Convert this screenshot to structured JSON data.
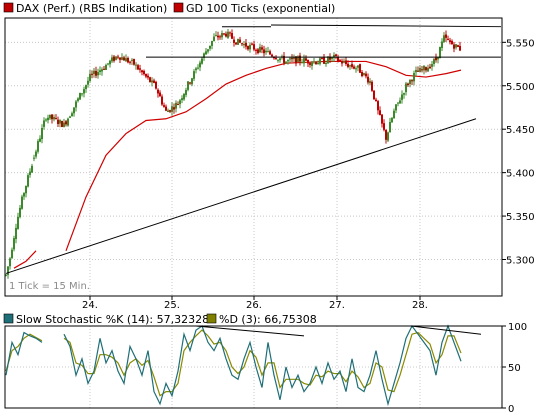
{
  "legend": {
    "series1": {
      "label": "DAX (Perf.) (RBS Indikation)",
      "color": "#c00000"
    },
    "series2": {
      "label": "GD 100 Ticks (exponential)",
      "color": "#c00000"
    },
    "series3": {
      "label": "Slow Stochastic %K (14): 57,32328",
      "color": "#1f6f78"
    },
    "series4": {
      "label": "%D (3): 66,75308",
      "color": "#808000"
    }
  },
  "note": "1 Tick = 15 Min.",
  "colors": {
    "up": "#3a8a2a",
    "down": "#c00000",
    "grid": "#c8c8c8",
    "frame": "#000000",
    "ma": "#d00000",
    "stochK": "#1f6f78",
    "stochD": "#8a8a00",
    "trend": "#000000"
  },
  "chart_data": [
    {
      "type": "candlestick",
      "title": "",
      "x_labels": [
        "24.",
        "25.",
        "26.",
        "27.",
        "28."
      ],
      "y_ticks": [
        "5.550",
        "5.500",
        "5.450",
        "5.400",
        "5.350",
        "5.300"
      ],
      "y_tick_values": [
        5550,
        5500,
        5450,
        5400,
        5350,
        5300
      ],
      "ylim": [
        5258,
        5578
      ],
      "anchors": [
        [
          0,
          5282
        ],
        [
          4,
          5302
        ],
        [
          10,
          5340
        ],
        [
          18,
          5378
        ],
        [
          26,
          5410
        ],
        [
          40,
          5465
        ],
        [
          50,
          5460
        ],
        [
          58,
          5455
        ],
        [
          70,
          5480
        ],
        [
          84,
          5510
        ],
        [
          96,
          5520
        ],
        [
          112,
          5535
        ],
        [
          128,
          5525
        ],
        [
          140,
          5510
        ],
        [
          150,
          5498
        ],
        [
          160,
          5470
        ],
        [
          172,
          5480
        ],
        [
          186,
          5510
        ],
        [
          200,
          5540
        ],
        [
          208,
          5555
        ],
        [
          220,
          5560
        ],
        [
          232,
          5550
        ],
        [
          244,
          5545
        ],
        [
          256,
          5540
        ],
        [
          268,
          5535
        ],
        [
          280,
          5528
        ],
        [
          292,
          5530
        ],
        [
          304,
          5528
        ],
        [
          316,
          5528
        ],
        [
          328,
          5532
        ],
        [
          340,
          5525
        ],
        [
          352,
          5520
        ],
        [
          364,
          5505
        ],
        [
          372,
          5470
        ],
        [
          380,
          5440
        ],
        [
          388,
          5470
        ],
        [
          400,
          5500
        ],
        [
          410,
          5515
        ],
        [
          420,
          5520
        ],
        [
          430,
          5530
        ],
        [
          438,
          5555
        ],
        [
          446,
          5548
        ],
        [
          455,
          5542
        ]
      ],
      "gaps_after": [
        26,
        58
      ],
      "ma_anchors": [
        [
          8,
          5290
        ],
        [
          20,
          5298
        ],
        [
          30,
          5310
        ],
        [
          60,
          5310
        ],
        [
          80,
          5372
        ],
        [
          100,
          5420
        ],
        [
          120,
          5445
        ],
        [
          140,
          5460
        ],
        [
          160,
          5462
        ],
        [
          180,
          5470
        ],
        [
          200,
          5485
        ],
        [
          220,
          5502
        ],
        [
          240,
          5512
        ],
        [
          260,
          5520
        ],
        [
          280,
          5526
        ],
        [
          300,
          5527
        ],
        [
          320,
          5528
        ],
        [
          340,
          5528
        ],
        [
          360,
          5528
        ],
        [
          380,
          5522
        ],
        [
          400,
          5512
        ],
        [
          420,
          5510
        ],
        [
          440,
          5514
        ],
        [
          455,
          5518
        ]
      ],
      "ma_gaps_after": [
        30
      ],
      "trendlines": [
        {
          "x1": 0,
          "y1": 5284,
          "x2": 470,
          "y2": 5462
        },
        {
          "x1": 140,
          "y1": 5533,
          "x2": 500,
          "y2": 5533
        },
        {
          "x1": 216,
          "y1": 5568,
          "x2": 265,
          "y2": 5568
        },
        {
          "x1": 265,
          "y1": 5570,
          "x2": 500,
          "y2": 5568
        }
      ]
    },
    {
      "type": "line",
      "title": "",
      "y_ticks": [
        "100",
        "50",
        "0"
      ],
      "y_tick_values": [
        100,
        50,
        0
      ],
      "ylim": [
        0,
        100
      ],
      "k_anchors": [
        [
          0,
          40
        ],
        [
          6,
          80
        ],
        [
          12,
          65
        ],
        [
          18,
          92
        ],
        [
          24,
          88
        ],
        [
          30,
          85
        ],
        [
          36,
          80
        ],
        [
          58,
          90
        ],
        [
          64,
          75
        ],
        [
          70,
          40
        ],
        [
          76,
          60
        ],
        [
          82,
          30
        ],
        [
          88,
          45
        ],
        [
          94,
          85
        ],
        [
          100,
          55
        ],
        [
          106,
          70
        ],
        [
          112,
          45
        ],
        [
          118,
          30
        ],
        [
          124,
          75
        ],
        [
          130,
          60
        ],
        [
          136,
          40
        ],
        [
          142,
          70
        ],
        [
          148,
          20
        ],
        [
          154,
          5
        ],
        [
          160,
          30
        ],
        [
          166,
          15
        ],
        [
          172,
          45
        ],
        [
          178,
          90
        ],
        [
          184,
          70
        ],
        [
          190,
          95
        ],
        [
          196,
          100
        ],
        [
          202,
          80
        ],
        [
          208,
          70
        ],
        [
          214,
          85
        ],
        [
          220,
          60
        ],
        [
          226,
          40
        ],
        [
          232,
          35
        ],
        [
          238,
          60
        ],
        [
          244,
          80
        ],
        [
          250,
          50
        ],
        [
          256,
          25
        ],
        [
          262,
          80
        ],
        [
          268,
          40
        ],
        [
          274,
          10
        ],
        [
          280,
          50
        ],
        [
          286,
          25
        ],
        [
          292,
          40
        ],
        [
          298,
          20
        ],
        [
          304,
          30
        ],
        [
          310,
          50
        ],
        [
          316,
          30
        ],
        [
          322,
          55
        ],
        [
          328,
          35
        ],
        [
          334,
          45
        ],
        [
          340,
          20
        ],
        [
          346,
          60
        ],
        [
          352,
          25
        ],
        [
          358,
          20
        ],
        [
          364,
          40
        ],
        [
          370,
          70
        ],
        [
          376,
          35
        ],
        [
          382,
          5
        ],
        [
          388,
          30
        ],
        [
          394,
          55
        ],
        [
          400,
          85
        ],
        [
          406,
          100
        ],
        [
          412,
          90
        ],
        [
          418,
          80
        ],
        [
          424,
          70
        ],
        [
          430,
          40
        ],
        [
          436,
          80
        ],
        [
          442,
          100
        ],
        [
          448,
          80
        ],
        [
          455,
          57
        ]
      ],
      "d_anchors": [
        [
          0,
          45
        ],
        [
          6,
          70
        ],
        [
          12,
          75
        ],
        [
          18,
          85
        ],
        [
          24,
          90
        ],
        [
          30,
          86
        ],
        [
          36,
          82
        ],
        [
          58,
          85
        ],
        [
          64,
          80
        ],
        [
          70,
          55
        ],
        [
          76,
          52
        ],
        [
          82,
          42
        ],
        [
          88,
          42
        ],
        [
          94,
          65
        ],
        [
          100,
          65
        ],
        [
          106,
          62
        ],
        [
          112,
          55
        ],
        [
          118,
          40
        ],
        [
          124,
          55
        ],
        [
          130,
          60
        ],
        [
          136,
          52
        ],
        [
          142,
          58
        ],
        [
          148,
          38
        ],
        [
          154,
          15
        ],
        [
          160,
          20
        ],
        [
          166,
          20
        ],
        [
          172,
          30
        ],
        [
          178,
          70
        ],
        [
          184,
          80
        ],
        [
          190,
          88
        ],
        [
          196,
          95
        ],
        [
          202,
          88
        ],
        [
          208,
          78
        ],
        [
          214,
          80
        ],
        [
          220,
          70
        ],
        [
          226,
          50
        ],
        [
          232,
          42
        ],
        [
          238,
          50
        ],
        [
          244,
          70
        ],
        [
          250,
          62
        ],
        [
          256,
          40
        ],
        [
          262,
          55
        ],
        [
          268,
          55
        ],
        [
          274,
          25
        ],
        [
          280,
          35
        ],
        [
          286,
          35
        ],
        [
          292,
          35
        ],
        [
          298,
          30
        ],
        [
          304,
          28
        ],
        [
          310,
          40
        ],
        [
          316,
          38
        ],
        [
          322,
          45
        ],
        [
          328,
          42
        ],
        [
          334,
          42
        ],
        [
          340,
          32
        ],
        [
          346,
          45
        ],
        [
          352,
          38
        ],
        [
          358,
          25
        ],
        [
          364,
          30
        ],
        [
          370,
          55
        ],
        [
          376,
          50
        ],
        [
          382,
          22
        ],
        [
          388,
          20
        ],
        [
          394,
          40
        ],
        [
          400,
          65
        ],
        [
          406,
          90
        ],
        [
          412,
          92
        ],
        [
          418,
          85
        ],
        [
          424,
          78
        ],
        [
          430,
          55
        ],
        [
          436,
          65
        ],
        [
          442,
          88
        ],
        [
          448,
          88
        ],
        [
          455,
          67
        ]
      ],
      "gaps_after": [
        36
      ],
      "trendlines": [
        {
          "x1": 190,
          "y1": 100,
          "x2": 298,
          "y2": 88
        },
        {
          "x1": 405,
          "y1": 100,
          "x2": 475,
          "y2": 90
        }
      ]
    }
  ]
}
